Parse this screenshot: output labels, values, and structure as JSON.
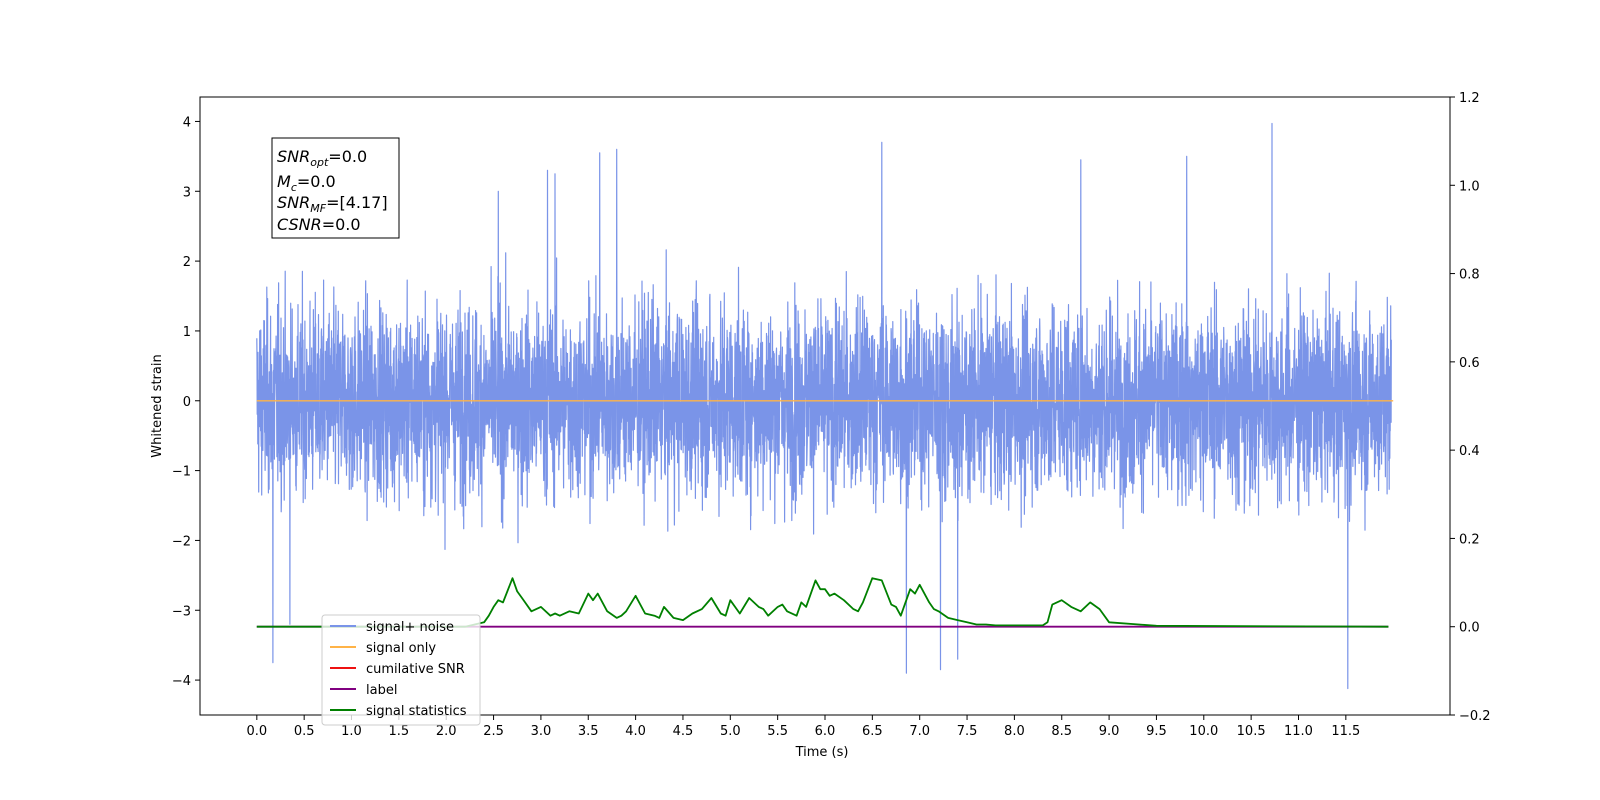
{
  "chart_data": {
    "type": "line",
    "xlabel": "Time (s)",
    "ylabel_left": "Whitened strain",
    "ylabel_right": "",
    "xlim": [
      -0.6,
      12.6
    ],
    "ylim_left": [
      -4.5,
      4.35
    ],
    "ylim_right": [
      -0.2,
      1.2
    ],
    "x_ticks": [
      "0.0",
      "0.5",
      "1.0",
      "1.5",
      "2.0",
      "2.5",
      "3.0",
      "3.5",
      "4.0",
      "4.5",
      "5.0",
      "5.5",
      "6.0",
      "6.5",
      "7.0",
      "7.5",
      "8.0",
      "8.5",
      "9.0",
      "9.5",
      "10.0",
      "10.5",
      "11.0",
      "11.5"
    ],
    "y_ticks_left": [
      "4",
      "3",
      "2",
      "1",
      "0",
      "−1",
      "−2",
      "−3",
      "−4"
    ],
    "y_ticks_right": [
      "1.2",
      "1.0",
      "0.8",
      "0.6",
      "0.4",
      "0.2",
      "0.0",
      "−0.2"
    ],
    "grid": false,
    "legend_placement": "lower-left",
    "info_box": {
      "lines": [
        {
          "sym": "SNR",
          "sub": "opt",
          "value": "=0.0"
        },
        {
          "sym": "M",
          "sub": "c",
          "value": "=0.0"
        },
        {
          "sym": "SNR",
          "sub": "MF",
          "value": "=[4.17]"
        },
        {
          "sym": "CSNR",
          "sub": "",
          "value": "=0.0"
        }
      ]
    },
    "series": [
      {
        "name": "signal+ noise",
        "color": "#7a94e8",
        "axis": "left",
        "kind": "noise",
        "x_range": [
          0.0,
          11.98
        ],
        "typical_range": [
          -2.0,
          2.0
        ],
        "spikes": [
          {
            "x": 0.17,
            "y": -3.75
          },
          {
            "x": 0.35,
            "y": -3.2
          },
          {
            "x": 2.55,
            "y": 3.0
          },
          {
            "x": 3.07,
            "y": 3.3
          },
          {
            "x": 3.15,
            "y": 3.25
          },
          {
            "x": 3.62,
            "y": 3.55
          },
          {
            "x": 3.8,
            "y": 3.6
          },
          {
            "x": 6.6,
            "y": 3.7
          },
          {
            "x": 6.86,
            "y": -3.9
          },
          {
            "x": 7.22,
            "y": -3.85
          },
          {
            "x": 7.4,
            "y": -3.7
          },
          {
            "x": 8.7,
            "y": 3.45
          },
          {
            "x": 10.72,
            "y": 3.97
          },
          {
            "x": 11.52,
            "y": -4.12
          },
          {
            "x": 9.82,
            "y": 3.5
          }
        ]
      },
      {
        "name": "signal only",
        "color": "#ffb347",
        "axis": "left",
        "x": [
          0.0,
          12.0
        ],
        "y": [
          0.0,
          0.0
        ]
      },
      {
        "name": "cumilative SNR",
        "color": "#ee1111",
        "axis": "right",
        "x": [],
        "y": []
      },
      {
        "name": "label",
        "color": "#800080",
        "axis": "right",
        "x": [
          0.0,
          11.95
        ],
        "y": [
          0.0,
          0.0
        ]
      },
      {
        "name": "signal statistics",
        "color": "#008000",
        "axis": "right",
        "x": [
          0.0,
          2.2,
          2.3,
          2.4,
          2.45,
          2.5,
          2.55,
          2.6,
          2.7,
          2.75,
          2.8,
          2.9,
          3.0,
          3.1,
          3.15,
          3.2,
          3.3,
          3.4,
          3.5,
          3.55,
          3.6,
          3.7,
          3.8,
          3.85,
          3.9,
          4.0,
          4.1,
          4.2,
          4.25,
          4.3,
          4.4,
          4.5,
          4.6,
          4.7,
          4.8,
          4.9,
          4.95,
          5.0,
          5.1,
          5.2,
          5.3,
          5.35,
          5.4,
          5.5,
          5.55,
          5.6,
          5.7,
          5.75,
          5.8,
          5.9,
          5.95,
          6.0,
          6.05,
          6.1,
          6.2,
          6.3,
          6.35,
          6.4,
          6.5,
          6.6,
          6.7,
          6.75,
          6.8,
          6.9,
          6.95,
          7.0,
          7.1,
          7.15,
          7.2,
          7.3,
          7.4,
          7.5,
          7.6,
          7.7,
          7.8,
          7.9,
          8.0,
          8.1,
          8.2,
          8.3,
          8.35,
          8.4,
          8.5,
          8.6,
          8.7,
          8.8,
          8.9,
          9.0,
          9.5,
          11.95
        ],
        "y": [
          0.0,
          0.0,
          0.005,
          0.01,
          0.025,
          0.045,
          0.06,
          0.055,
          0.11,
          0.08,
          0.065,
          0.035,
          0.045,
          0.025,
          0.03,
          0.025,
          0.035,
          0.03,
          0.075,
          0.06,
          0.075,
          0.035,
          0.02,
          0.025,
          0.035,
          0.07,
          0.03,
          0.025,
          0.02,
          0.045,
          0.02,
          0.015,
          0.03,
          0.04,
          0.065,
          0.03,
          0.025,
          0.06,
          0.03,
          0.065,
          0.045,
          0.04,
          0.025,
          0.045,
          0.05,
          0.035,
          0.025,
          0.055,
          0.045,
          0.105,
          0.085,
          0.085,
          0.07,
          0.075,
          0.06,
          0.04,
          0.035,
          0.055,
          0.11,
          0.105,
          0.05,
          0.045,
          0.025,
          0.085,
          0.075,
          0.095,
          0.055,
          0.04,
          0.035,
          0.02,
          0.015,
          0.01,
          0.005,
          0.005,
          0.003,
          0.003,
          0.003,
          0.003,
          0.003,
          0.003,
          0.01,
          0.05,
          0.06,
          0.045,
          0.035,
          0.055,
          0.04,
          0.01,
          0.002,
          0.0
        ],
        "note_draw": "line"
      }
    ]
  }
}
